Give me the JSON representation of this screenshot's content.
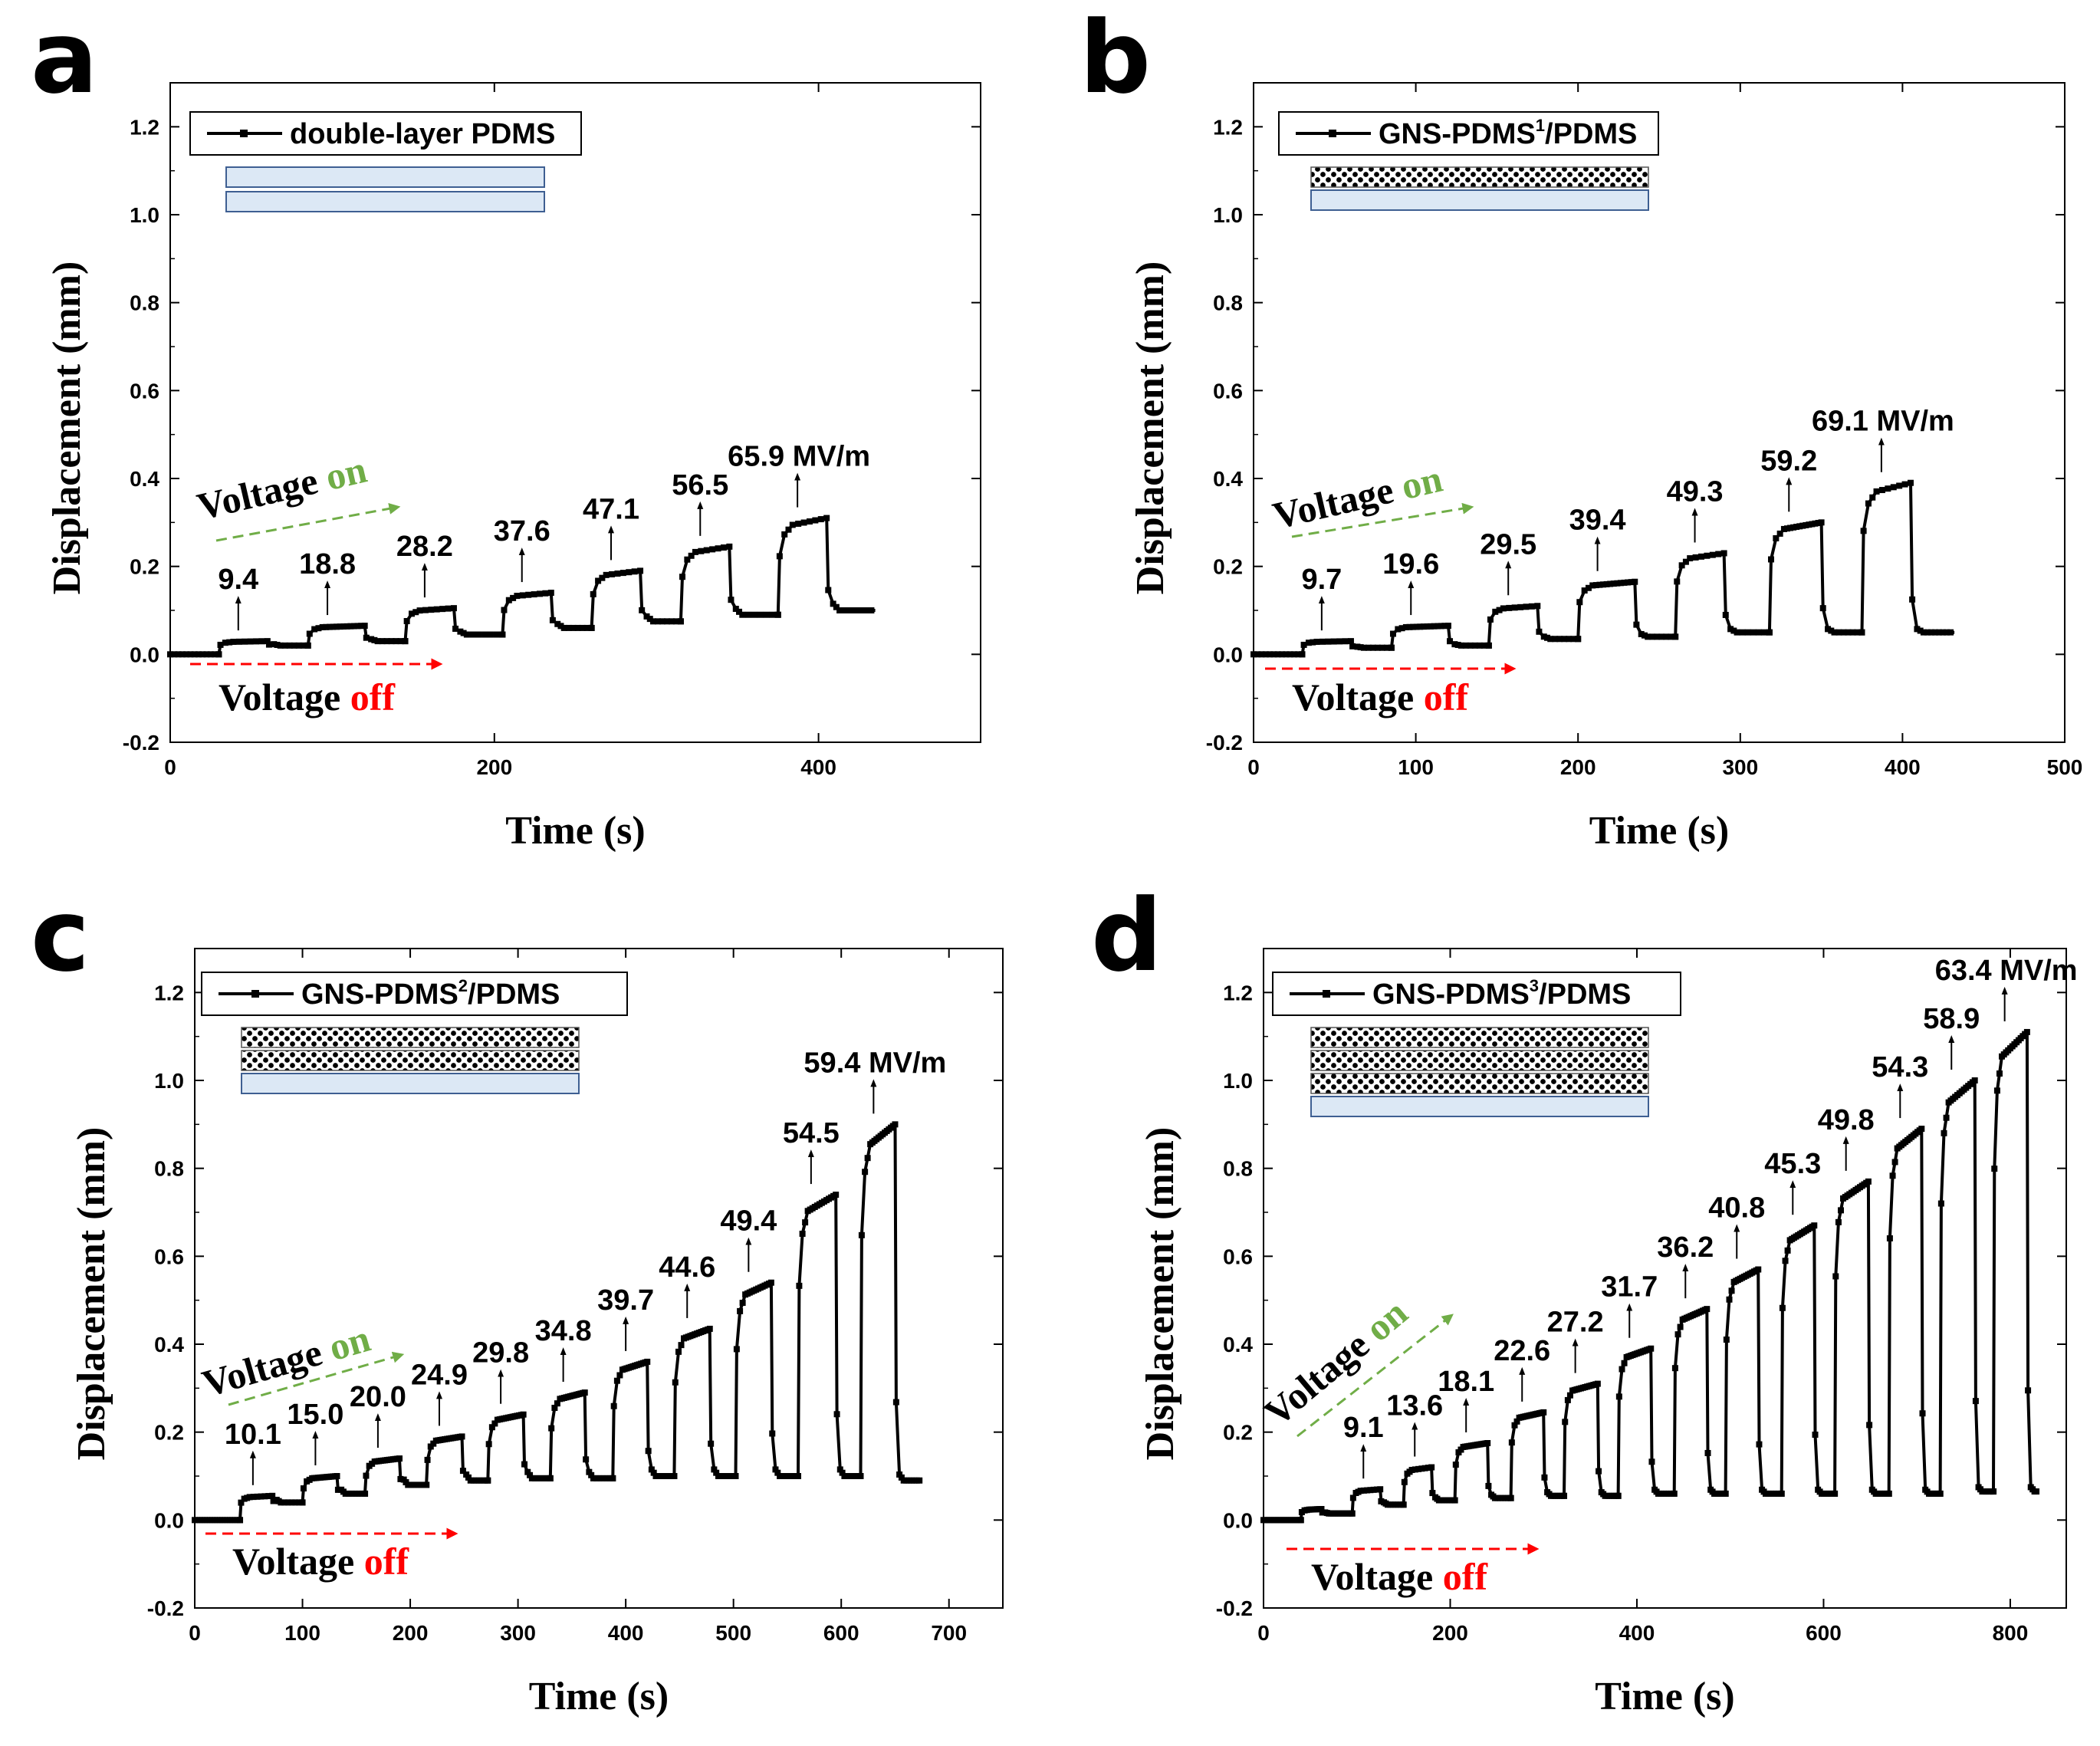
{
  "chart_data": [
    {
      "type": "line",
      "panel": "a",
      "xlabel": "Time (s)",
      "ylabel": "Displacement (mm)",
      "xlim": [
        0,
        500
      ],
      "ylim": [
        -0.2,
        1.3
      ],
      "xticks": [
        "0",
        "200",
        "400"
      ],
      "yticks": [
        "-0.2",
        "0.0",
        "0.2",
        "0.4",
        "0.6",
        "0.8",
        "1.0",
        "1.2"
      ],
      "legend": {
        "label": "double-layer PDMS",
        "sup": ""
      },
      "layers": {
        "composite": 0,
        "pure": 2
      },
      "voltage_on_label": [
        "Voltage ",
        "on"
      ],
      "voltage_off_label": [
        "Voltage ",
        "off"
      ],
      "steps": [
        {
          "on": [
            30,
            60
          ],
          "value": 0.03,
          "base": 0.02,
          "label": "9.4"
        },
        {
          "on": [
            85,
            120
          ],
          "value": 0.065,
          "base": 0.03,
          "label": "18.8"
        },
        {
          "on": [
            145,
            175
          ],
          "value": 0.105,
          "base": 0.045,
          "label": "28.2"
        },
        {
          "on": [
            205,
            235
          ],
          "value": 0.14,
          "base": 0.06,
          "label": "37.6"
        },
        {
          "on": [
            260,
            290
          ],
          "value": 0.19,
          "base": 0.075,
          "label": "47.1"
        },
        {
          "on": [
            315,
            345
          ],
          "value": 0.245,
          "base": 0.09,
          "label": "56.5"
        },
        {
          "on": [
            375,
            405
          ],
          "value": 0.31,
          "base": 0.1,
          "label": "65.9 MV/m"
        }
      ],
      "x_end": 435,
      "initial": 0.0
    },
    {
      "type": "line",
      "panel": "b",
      "xlabel": "Time (s)",
      "ylabel": "Displacement (mm)",
      "xlim": [
        0,
        500
      ],
      "ylim": [
        -0.2,
        1.3
      ],
      "xticks": [
        "0",
        "100",
        "200",
        "300",
        "400",
        "500"
      ],
      "yticks": [
        "-0.2",
        "0.0",
        "0.2",
        "0.4",
        "0.6",
        "0.8",
        "1.0",
        "1.2"
      ],
      "legend": {
        "label": "GNS-PDMS",
        "sup": "1",
        "suffix": "/PDMS"
      },
      "layers": {
        "composite": 1,
        "pure": 1
      },
      "voltage_on_label": [
        "Voltage ",
        "on"
      ],
      "voltage_off_label": [
        "Voltage ",
        "off"
      ],
      "steps": [
        {
          "on": [
            30,
            60
          ],
          "value": 0.03,
          "base": 0.015,
          "label": "9.7"
        },
        {
          "on": [
            85,
            120
          ],
          "value": 0.065,
          "base": 0.02,
          "label": "19.6"
        },
        {
          "on": [
            145,
            175
          ],
          "value": 0.11,
          "base": 0.035,
          "label": "29.5"
        },
        {
          "on": [
            200,
            235
          ],
          "value": 0.165,
          "base": 0.04,
          "label": "39.4"
        },
        {
          "on": [
            260,
            290
          ],
          "value": 0.23,
          "base": 0.05,
          "label": "49.3"
        },
        {
          "on": [
            318,
            350
          ],
          "value": 0.3,
          "base": 0.05,
          "label": "59.2"
        },
        {
          "on": [
            375,
            405
          ],
          "value": 0.39,
          "base": 0.05,
          "label": "69.1 MV/m"
        }
      ],
      "x_end": 432,
      "initial": 0.0
    },
    {
      "type": "line",
      "panel": "c",
      "xlabel": "Time (s)",
      "ylabel": "Displacement (mm)",
      "xlim": [
        0,
        750
      ],
      "ylim": [
        -0.2,
        1.3
      ],
      "xticks": [
        "0",
        "100",
        "200",
        "300",
        "400",
        "500",
        "600",
        "700"
      ],
      "yticks": [
        "-0.2",
        "0.0",
        "0.2",
        "0.4",
        "0.6",
        "0.8",
        "1.0",
        "1.2"
      ],
      "legend": {
        "label": "GNS-PDMS",
        "sup": "2",
        "suffix": "/PDMS"
      },
      "layers": {
        "composite": 2,
        "pure": 1
      },
      "voltage_on_label": [
        "Voltage ",
        "on"
      ],
      "voltage_off_label": [
        "Voltage ",
        "off"
      ],
      "steps": [
        {
          "on": [
            42,
            72
          ],
          "value": 0.055,
          "base": 0.04,
          "label": "10.1"
        },
        {
          "on": [
            100,
            132
          ],
          "value": 0.1,
          "base": 0.06,
          "label": "15.0"
        },
        {
          "on": [
            158,
            190
          ],
          "value": 0.14,
          "base": 0.08,
          "label": "20.0"
        },
        {
          "on": [
            215,
            248
          ],
          "value": 0.19,
          "base": 0.09,
          "label": "24.9"
        },
        {
          "on": [
            272,
            305
          ],
          "value": 0.24,
          "base": 0.095,
          "label": "29.8"
        },
        {
          "on": [
            330,
            362
          ],
          "value": 0.29,
          "base": 0.095,
          "label": "34.8"
        },
        {
          "on": [
            388,
            420
          ],
          "value": 0.36,
          "base": 0.1,
          "label": "39.7"
        },
        {
          "on": [
            445,
            478
          ],
          "value": 0.435,
          "base": 0.1,
          "label": "44.6"
        },
        {
          "on": [
            502,
            535
          ],
          "value": 0.54,
          "base": 0.1,
          "label": "49.4"
        },
        {
          "on": [
            560,
            595
          ],
          "value": 0.74,
          "base": 0.1,
          "label": "54.5"
        },
        {
          "on": [
            618,
            650
          ],
          "value": 0.9,
          "base": 0.09,
          "label": "59.4 MV/m"
        }
      ],
      "x_end": 675,
      "initial": 0.0
    },
    {
      "type": "line",
      "panel": "d",
      "xlabel": "Time (s)",
      "ylabel": "Displacement (mm)",
      "xlim": [
        0,
        860
      ],
      "ylim": [
        -0.2,
        1.3
      ],
      "xticks": [
        "0",
        "200",
        "400",
        "600",
        "800"
      ],
      "yticks": [
        "-0.2",
        "0.0",
        "0.2",
        "0.4",
        "0.6",
        "0.8",
        "1.0",
        "1.2"
      ],
      "legend": {
        "label": "GNS-PDMS",
        "sup": "3",
        "suffix": "/PDMS"
      },
      "layers": {
        "composite": 3,
        "pure": 1
      },
      "voltage_on_label": [
        "Voltage ",
        "on"
      ],
      "voltage_off_label": [
        "Voltage ",
        "off"
      ],
      "steps": [
        {
          "on": [
            40,
            62
          ],
          "value": 0.025,
          "base": 0.015,
          "label": ""
        },
        {
          "on": [
            95,
            125
          ],
          "value": 0.07,
          "base": 0.035,
          "label": "9.1"
        },
        {
          "on": [
            150,
            180
          ],
          "value": 0.12,
          "base": 0.045,
          "label": "13.6"
        },
        {
          "on": [
            205,
            240
          ],
          "value": 0.175,
          "base": 0.05,
          "label": "18.1"
        },
        {
          "on": [
            265,
            300
          ],
          "value": 0.245,
          "base": 0.055,
          "label": "22.6"
        },
        {
          "on": [
            322,
            358
          ],
          "value": 0.31,
          "base": 0.055,
          "label": "27.2"
        },
        {
          "on": [
            380,
            415
          ],
          "value": 0.39,
          "base": 0.06,
          "label": "31.7"
        },
        {
          "on": [
            440,
            475
          ],
          "value": 0.48,
          "base": 0.06,
          "label": "36.2"
        },
        {
          "on": [
            495,
            530
          ],
          "value": 0.57,
          "base": 0.06,
          "label": "40.8"
        },
        {
          "on": [
            555,
            590
          ],
          "value": 0.67,
          "base": 0.06,
          "label": "45.3"
        },
        {
          "on": [
            612,
            648
          ],
          "value": 0.77,
          "base": 0.06,
          "label": "49.8"
        },
        {
          "on": [
            670,
            705
          ],
          "value": 0.89,
          "base": 0.06,
          "label": "54.3"
        },
        {
          "on": [
            725,
            762
          ],
          "value": 1.0,
          "base": 0.065,
          "label": "58.9"
        },
        {
          "on": [
            782,
            818
          ],
          "value": 1.11,
          "base": 0.065,
          "label": "63.4 MV/m"
        }
      ],
      "x_end": 830,
      "initial": 0.0
    }
  ]
}
